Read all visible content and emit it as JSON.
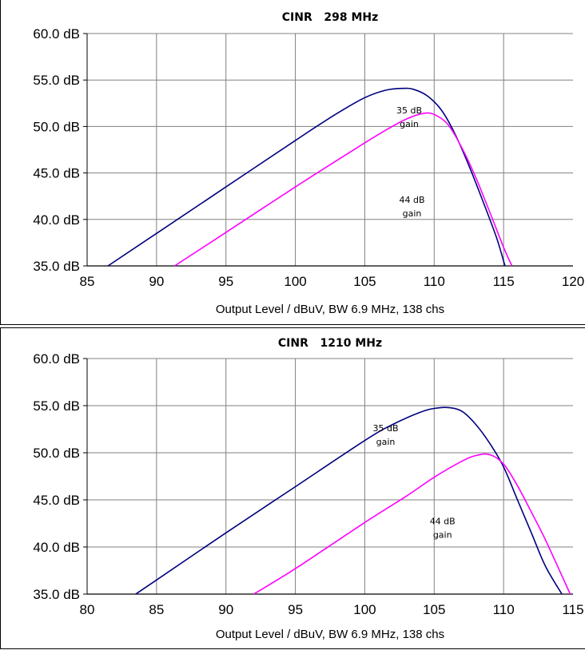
{
  "chart_data": [
    {
      "type": "line",
      "title": "CINR   298 MHz",
      "xlabel": "Output Level / dBuV, BW 6.9 MHz, 138 chs",
      "ylabel": "",
      "xlim": [
        85,
        120
      ],
      "ylim": [
        35,
        60
      ],
      "x_ticks": [
        "85",
        "90",
        "95",
        "100",
        "105",
        "110",
        "115",
        "120"
      ],
      "y_ticks": [
        "35.0 dB",
        "40.0 dB",
        "45.0 dB",
        "50.0 dB",
        "55.0 dB",
        "60.0 dB"
      ],
      "grid": true,
      "series": [
        {
          "color": "#000080",
          "x": [
            86.5,
            90,
            95,
            100,
            103,
            105,
            106.5,
            107.7,
            108.5,
            109.5,
            110.5,
            111.5,
            112.5,
            113.5,
            114.5,
            115.1
          ],
          "y": [
            35.0,
            38.5,
            43.5,
            48.5,
            51.4,
            53.1,
            53.9,
            54.1,
            54.0,
            53.3,
            51.8,
            49.2,
            45.8,
            42.0,
            38.0,
            35.0
          ]
        },
        {
          "color": "#ff00ff",
          "x": [
            91.3,
            95,
            100,
            104,
            106.5,
            108,
            109.2,
            110,
            111,
            112,
            113,
            114,
            115,
            115.6
          ],
          "y": [
            35.0,
            38.6,
            43.5,
            47.3,
            49.6,
            50.8,
            51.4,
            51.3,
            50.2,
            47.7,
            44.5,
            40.8,
            37.0,
            35.0
          ]
        }
      ],
      "annotations": [
        {
          "lines": [
            "35 dB",
            "gain"
          ],
          "x": 108.2,
          "y": 51.4
        },
        {
          "lines": [
            "44 dB",
            "gain"
          ],
          "x": 108.4,
          "y": 41.8
        }
      ]
    },
    {
      "type": "line",
      "title": "CINR   1210 MHz",
      "xlabel": "Output Level / dBuV, BW 6.9 MHz, 138 chs",
      "ylabel": "",
      "xlim": [
        80,
        115
      ],
      "ylim": [
        35,
        60
      ],
      "x_ticks": [
        "80",
        "85",
        "90",
        "95",
        "100",
        "105",
        "110",
        "115"
      ],
      "y_ticks": [
        "35.0 dB",
        "40.0 dB",
        "45.0 dB",
        "50.0 dB",
        "55.0 dB",
        "60.0 dB"
      ],
      "grid": true,
      "series": [
        {
          "color": "#000080",
          "x": [
            83.5,
            85,
            90,
            95,
            100,
            102,
            104,
            105,
            106,
            107,
            108,
            109,
            110,
            111,
            112,
            113,
            114.2
          ],
          "y": [
            35.0,
            36.5,
            41.5,
            46.4,
            51.3,
            53.0,
            54.3,
            54.7,
            54.8,
            54.4,
            53.0,
            51.0,
            48.5,
            45.0,
            41.5,
            38.0,
            35.0
          ]
        },
        {
          "color": "#ff00ff",
          "x": [
            92.0,
            95,
            100,
            103,
            105,
            107,
            108,
            109,
            110,
            111,
            112,
            113,
            114,
            114.8
          ],
          "y": [
            35.0,
            37.7,
            42.6,
            45.4,
            47.4,
            49.1,
            49.7,
            49.8,
            48.8,
            46.5,
            43.7,
            40.8,
            37.6,
            35.0
          ]
        }
      ],
      "annotations": [
        {
          "lines": [
            "35 dB",
            "gain"
          ],
          "x": 101.5,
          "y": 52.3
        },
        {
          "lines": [
            "44 dB",
            "gain"
          ],
          "x": 105.6,
          "y": 42.4
        }
      ]
    }
  ]
}
